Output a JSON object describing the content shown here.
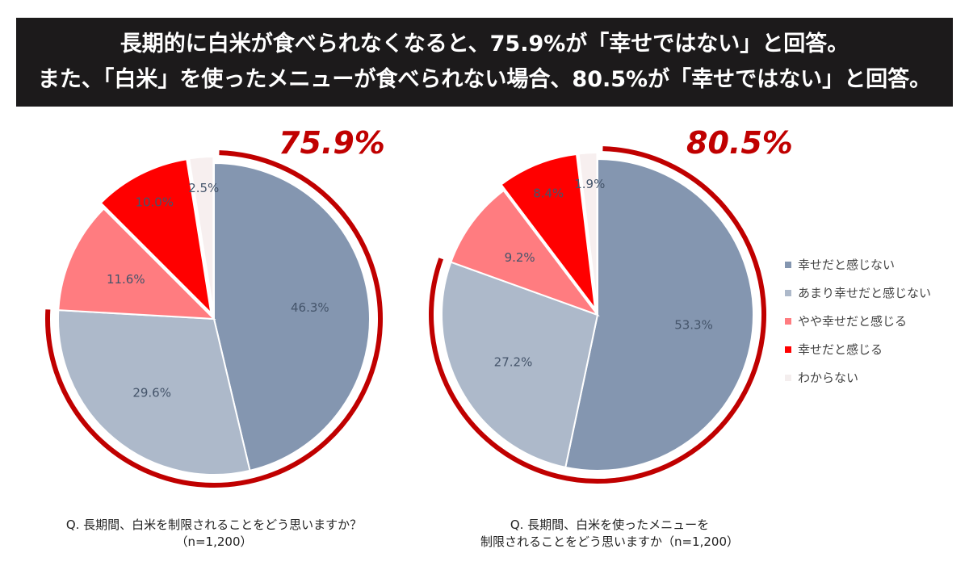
{
  "banner": {
    "line1": "長期的に白米が食べられなくなると、75.9%が「幸せではない」と回答。",
    "line2": "また、「白米」を使ったメニューが食べられない場合、80.5%が「幸せではない」と回答。"
  },
  "chart_data": [
    {
      "type": "pie",
      "highlight": "75.9%",
      "caption1": "Q. 長期間、白米を制限されることをどう思いますか？",
      "caption2": "（n=1,200）",
      "categories": [
        "幸せだと感じない",
        "あまり幸せだと感じない",
        "やや幸せだと感じる",
        "幸せだと感じる",
        "わからない"
      ],
      "values": [
        46.3,
        29.6,
        11.6,
        10.0,
        2.5
      ],
      "labels": [
        "46.3%",
        "29.6%",
        "11.6%",
        "10.0%",
        "2.5%"
      ]
    },
    {
      "type": "pie",
      "highlight": "80.5%",
      "caption1": "Q. 長期間、白米を使ったメニューを",
      "caption2": "制限されることをどう思いますか（n=1,200）",
      "categories": [
        "幸せだと感じない",
        "あまり幸せだと感じない",
        "やや幸せだと感じる",
        "幸せだと感じる",
        "わからない"
      ],
      "values": [
        53.3,
        27.2,
        9.2,
        8.4,
        1.9
      ],
      "labels": [
        "53.3%",
        "27.2%",
        "9.2%",
        "8.4%",
        "1.9%"
      ]
    }
  ],
  "legend": [
    "幸せだと感じない",
    "あまり幸せだと感じない",
    "やや幸せだと感じる",
    "幸せだと感じる",
    "わからない"
  ],
  "colors": [
    "#8496b0",
    "#adb9ca",
    "#ff7c80",
    "#ff0000",
    "#f7efef"
  ],
  "arc_color": "#c00000"
}
